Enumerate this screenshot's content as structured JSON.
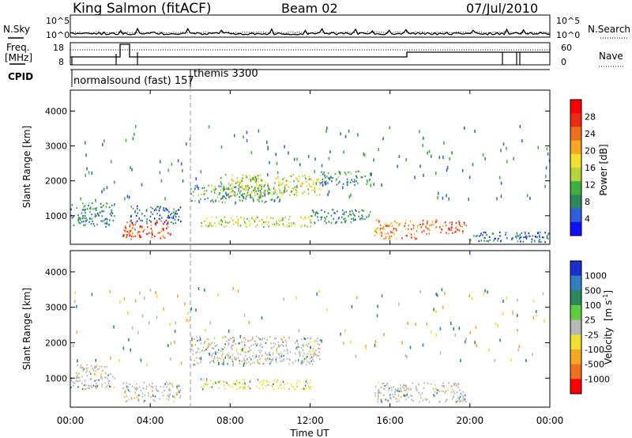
{
  "header": {
    "station": "King Salmon (fitACF)",
    "beam": "Beam 02",
    "date": "07/Jul/2010"
  },
  "status_panel": {
    "nsky_label": "N.Sky",
    "nsearch_label": "N.Search",
    "freq_label_1": "Freq.",
    "freq_label_2": "[MHz]",
    "nave_label": "Nave",
    "cpid_label": "CPID",
    "noise_ticks": [
      "10^5",
      "10^0"
    ],
    "freq_ticks": [
      "18",
      "8"
    ],
    "nave_ticks": [
      "60",
      "0"
    ],
    "modes": [
      {
        "label": "normalsound (fast) 157",
        "start_hour": 0
      },
      {
        "label": "themis 3300",
        "start_hour": 6
      }
    ]
  },
  "chart_data": [
    {
      "type": "heatmap",
      "parameter": "Power",
      "ylabel": "Slant Range [km]",
      "ylim": [
        180,
        4600
      ],
      "yticks": [
        "1000",
        "2000",
        "3000",
        "4000"
      ],
      "xlim_hours": [
        0,
        24
      ],
      "colorbar": {
        "label": "Power [dB]",
        "ticks": [
          "4",
          "8",
          "12",
          "16",
          "20",
          "24",
          "28"
        ],
        "range": [
          0,
          32
        ],
        "colors": [
          "#1010ff",
          "#2f5fdc",
          "#2a8a5e",
          "#3fae3f",
          "#b6d43a",
          "#f0e030",
          "#f5a820",
          "#f07020",
          "#ee2a15",
          "#ff0000"
        ]
      },
      "echo_regions": [
        {
          "t0": 0.0,
          "t1": 2.2,
          "r0": 700,
          "r1": 1400,
          "power": 8
        },
        {
          "t0": 2.6,
          "t1": 5.0,
          "r0": 350,
          "r1": 900,
          "power": 26
        },
        {
          "t0": 3.0,
          "t1": 5.5,
          "r0": 800,
          "r1": 1300,
          "power": 6
        },
        {
          "t0": 6.0,
          "t1": 10.5,
          "r0": 1400,
          "r1": 1900,
          "power": 10
        },
        {
          "t0": 7.5,
          "t1": 12.5,
          "r0": 1600,
          "r1": 2200,
          "power": 16
        },
        {
          "t0": 12.5,
          "t1": 15.0,
          "r0": 1900,
          "r1": 2300,
          "power": 9
        },
        {
          "t0": 6.5,
          "t1": 12.0,
          "r0": 700,
          "r1": 1000,
          "power": 16
        },
        {
          "t0": 12.0,
          "t1": 15.0,
          "r0": 800,
          "r1": 1200,
          "power": 8
        },
        {
          "t0": 15.2,
          "t1": 17.5,
          "r0": 350,
          "r1": 900,
          "power": 22
        },
        {
          "t0": 17.5,
          "t1": 19.8,
          "r0": 500,
          "r1": 900,
          "power": 26
        },
        {
          "t0": 19.8,
          "t1": 24.0,
          "r0": 250,
          "r1": 550,
          "power": 6
        }
      ]
    },
    {
      "type": "heatmap",
      "parameter": "Velocity",
      "ylabel": "Slant Range [km]",
      "ylim": [
        180,
        4600
      ],
      "yticks": [
        "1000",
        "2000",
        "3000",
        "4000"
      ],
      "xlim_hours": [
        0,
        24
      ],
      "xticks": [
        "00:00",
        "04:00",
        "08:00",
        "12:00",
        "16:00",
        "20:00",
        "00:00"
      ],
      "xlabel": "Time UT",
      "colorbar": {
        "label_main": "Velocity",
        "label_unit": "[m s",
        "label_exp": "-1",
        "label_close": "]",
        "ticks": [
          "1000",
          "500",
          "100",
          "25",
          "-25",
          "-100",
          "-500",
          "-1000"
        ],
        "colors": [
          "#1a2fd0",
          "#2e7fbf",
          "#2a8a5e",
          "#5ccf40",
          "#b8b8b8",
          "#f0e030",
          "#f5a820",
          "#f07020",
          "#ff0000"
        ]
      },
      "ground_scatter_color": "#b8b8b8",
      "echo_regions": [
        {
          "t0": 0.0,
          "t1": 2.2,
          "r0": 700,
          "r1": 1400,
          "velocity": 0
        },
        {
          "t0": 2.6,
          "t1": 5.5,
          "r0": 350,
          "r1": 900,
          "velocity": 0
        },
        {
          "t0": 6.0,
          "t1": 12.5,
          "r0": 1400,
          "r1": 2200,
          "velocity": 0
        },
        {
          "t0": 6.5,
          "t1": 12.0,
          "r0": 700,
          "r1": 1000,
          "velocity": -150
        },
        {
          "t0": 15.2,
          "t1": 19.8,
          "r0": 350,
          "r1": 900,
          "velocity": 0
        }
      ]
    }
  ]
}
